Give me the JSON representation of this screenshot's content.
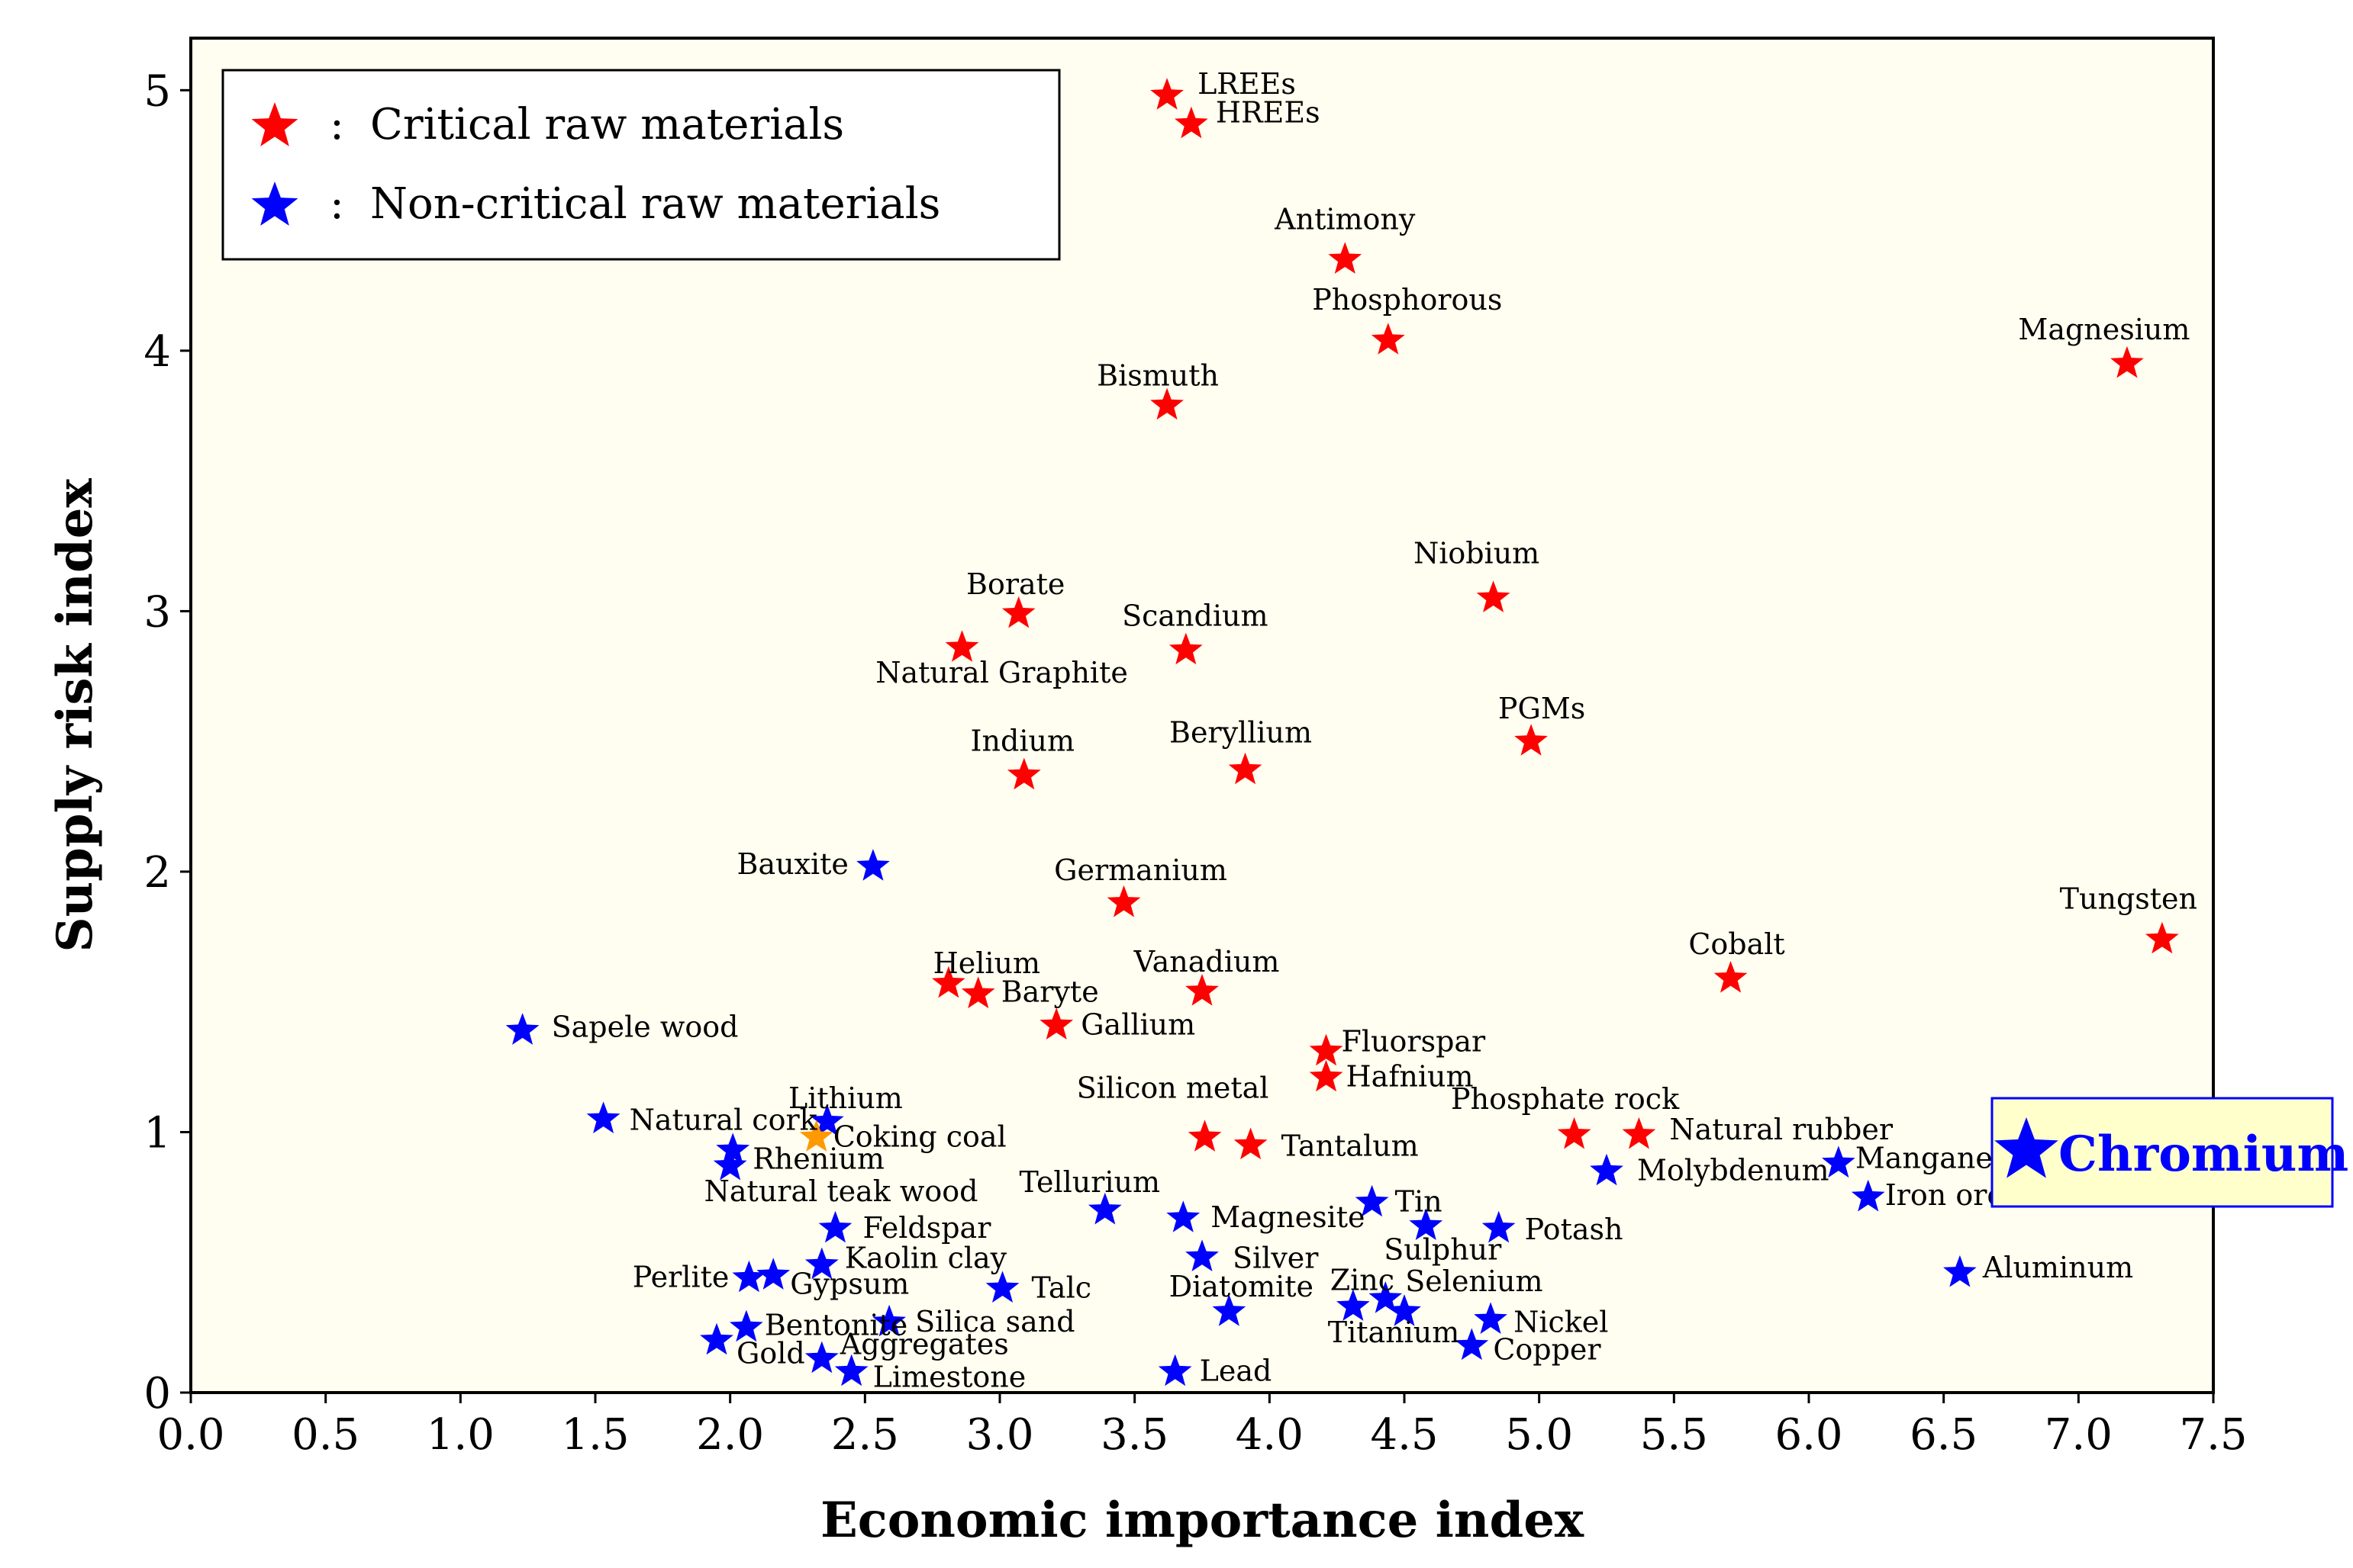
{
  "chart_data": {
    "type": "scatter",
    "xlabel": "Economic importance index",
    "ylabel": "Supply risk index",
    "xlim": [
      0,
      7.5
    ],
    "ylim": [
      0,
      5.2
    ],
    "xticks": [
      "0.0",
      "0.5",
      "1.0",
      "1.5",
      "2.0",
      "2.5",
      "3.0",
      "3.5",
      "4.0",
      "4.5",
      "5.0",
      "5.5",
      "6.0",
      "6.5",
      "7.0",
      "7.5"
    ],
    "yticks": [
      "0",
      "1",
      "2",
      "3",
      "4",
      "5"
    ],
    "legend": {
      "position": "top-left",
      "separator": ":",
      "entries": [
        {
          "label": "Critical raw materials",
          "color": "#ff0000"
        },
        {
          "label": "Non-critical raw materials",
          "color": "#0000ff"
        }
      ]
    },
    "colors": {
      "critical": "#ff0000",
      "noncritical": "#0000ff",
      "highlight": "#ff9900",
      "plot_background": "#fffef0",
      "callout_background": "#ffffcc"
    },
    "callout": {
      "label": "Chromium",
      "x": 6.83,
      "y": 0.89,
      "color": "#0000ff"
    },
    "series": [
      {
        "name": "Critical raw materials",
        "color": "#ff0000",
        "points": [
          {
            "label": "LREEs",
            "x": 3.62,
            "y": 4.98
          },
          {
            "label": "HREEs",
            "x": 3.71,
            "y": 4.87
          },
          {
            "label": "Antimony",
            "x": 4.28,
            "y": 4.35
          },
          {
            "label": "Phosphorous",
            "x": 4.44,
            "y": 4.04
          },
          {
            "label": "Magnesium",
            "x": 7.18,
            "y": 3.95
          },
          {
            "label": "Bismuth",
            "x": 3.62,
            "y": 3.79
          },
          {
            "label": "Niobium",
            "x": 4.83,
            "y": 3.05
          },
          {
            "label": "Borate",
            "x": 3.07,
            "y": 2.99
          },
          {
            "label": "Natural Graphite",
            "x": 2.86,
            "y": 2.86
          },
          {
            "label": "Scandium",
            "x": 3.69,
            "y": 2.85
          },
          {
            "label": "PGMs",
            "x": 4.97,
            "y": 2.5
          },
          {
            "label": "Indium",
            "x": 3.09,
            "y": 2.37
          },
          {
            "label": "Beryllium",
            "x": 3.91,
            "y": 2.39
          },
          {
            "label": "Germanium",
            "x": 3.46,
            "y": 1.88
          },
          {
            "label": "Tungsten",
            "x": 7.31,
            "y": 1.74
          },
          {
            "label": "Cobalt",
            "x": 5.71,
            "y": 1.59
          },
          {
            "label": "Helium",
            "x": 2.81,
            "y": 1.57
          },
          {
            "label": "Baryte",
            "x": 2.92,
            "y": 1.53
          },
          {
            "label": "Vanadium",
            "x": 3.75,
            "y": 1.54
          },
          {
            "label": "Gallium",
            "x": 3.21,
            "y": 1.41
          },
          {
            "label": "Fluorspar",
            "x": 4.21,
            "y": 1.31
          },
          {
            "label": "Hafnium",
            "x": 4.21,
            "y": 1.21
          },
          {
            "label": "Silicon metal",
            "x": 3.76,
            "y": 0.98
          },
          {
            "label": "Tantalum",
            "x": 3.93,
            "y": 0.95
          },
          {
            "label": "Phosphate rock",
            "x": 5.13,
            "y": 0.99
          },
          {
            "label": "Natural rubber",
            "x": 5.37,
            "y": 0.99
          }
        ]
      },
      {
        "name": "Non-critical raw materials",
        "color": "#0000ff",
        "points": [
          {
            "label": "Bauxite",
            "x": 2.53,
            "y": 2.02
          },
          {
            "label": "Sapele wood",
            "x": 1.23,
            "y": 1.39
          },
          {
            "label": "Natural cork",
            "x": 1.53,
            "y": 1.05
          },
          {
            "label": "Lithium",
            "x": 2.36,
            "y": 1.04
          },
          {
            "label": "Rhenium",
            "x": 2.01,
            "y": 0.93
          },
          {
            "label": "Natural teak wood",
            "x": 2.0,
            "y": 0.87
          },
          {
            "label": "Feldspar",
            "x": 2.39,
            "y": 0.63
          },
          {
            "label": "Kaolin clay",
            "x": 2.34,
            "y": 0.49
          },
          {
            "label": "Perlite",
            "x": 2.07,
            "y": 0.44
          },
          {
            "label": "Gypsum",
            "x": 2.16,
            "y": 0.45
          },
          {
            "label": "Talc",
            "x": 3.01,
            "y": 0.4
          },
          {
            "label": "Silica sand",
            "x": 2.59,
            "y": 0.27
          },
          {
            "label": "Bentonite",
            "x": 2.06,
            "y": 0.25
          },
          {
            "label": "Gold",
            "x": 1.95,
            "y": 0.2
          },
          {
            "label": "Aggregates",
            "x": 2.34,
            "y": 0.13
          },
          {
            "label": "Limestone",
            "x": 2.45,
            "y": 0.08
          },
          {
            "label": "Tellurium",
            "x": 3.39,
            "y": 0.7
          },
          {
            "label": "Magnesite",
            "x": 3.68,
            "y": 0.67
          },
          {
            "label": "Silver",
            "x": 3.75,
            "y": 0.52
          },
          {
            "label": "Diatomite",
            "x": 3.85,
            "y": 0.31
          },
          {
            "label": "Lead",
            "x": 3.65,
            "y": 0.08
          },
          {
            "label": "Tin",
            "x": 4.38,
            "y": 0.73
          },
          {
            "label": "Sulphur",
            "x": 4.58,
            "y": 0.64
          },
          {
            "label": "Potash",
            "x": 4.85,
            "y": 0.63
          },
          {
            "label": "Zinc",
            "x": 4.31,
            "y": 0.33
          },
          {
            "label": "Selenium",
            "x": 4.43,
            "y": 0.36
          },
          {
            "label": "Titanium",
            "x": 4.5,
            "y": 0.31
          },
          {
            "label": "Nickel",
            "x": 4.82,
            "y": 0.28
          },
          {
            "label": "Copper",
            "x": 4.75,
            "y": 0.18
          },
          {
            "label": "Molybdenum",
            "x": 5.25,
            "y": 0.85
          },
          {
            "label": "Manganese",
            "x": 6.11,
            "y": 0.88
          },
          {
            "label": "Iron ore",
            "x": 6.22,
            "y": 0.75
          },
          {
            "label": "Aluminum",
            "x": 6.56,
            "y": 0.46
          }
        ]
      },
      {
        "name": "Coking coal",
        "color": "#ff9900",
        "points": [
          {
            "label": "Coking coal",
            "x": 2.32,
            "y": 0.98
          }
        ]
      }
    ]
  }
}
